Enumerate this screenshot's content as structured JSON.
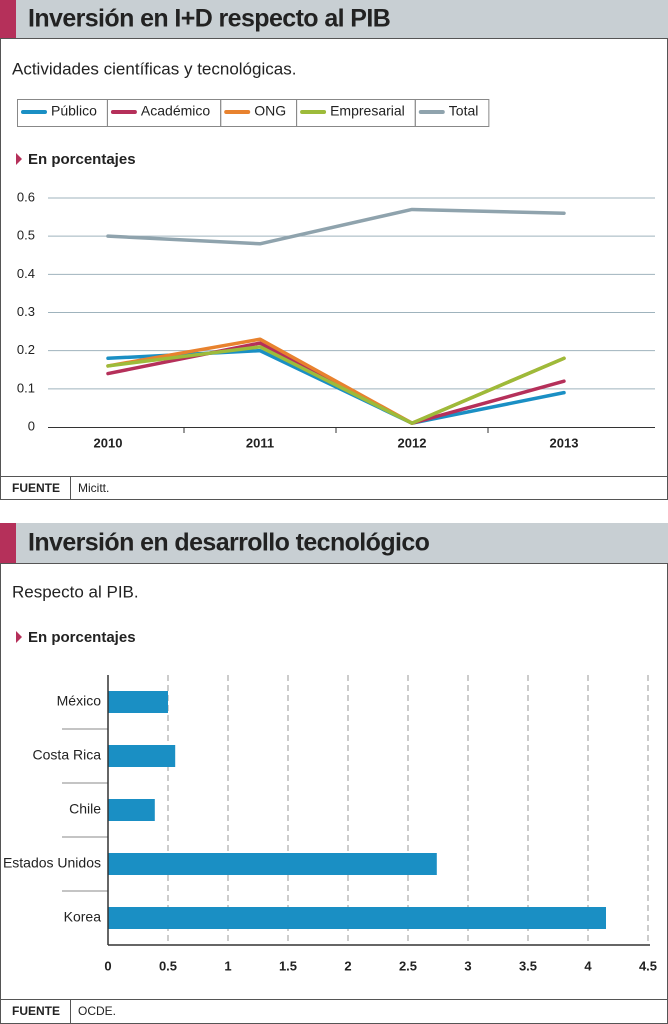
{
  "chart_data": [
    {
      "type": "line",
      "title": "Inversión en I+D respecto al PIB",
      "subtitle": "Actividades científicas y tecnológicas.",
      "unit_label": "En porcentajes",
      "categories": [
        "2010",
        "2011",
        "2012",
        "2013"
      ],
      "series": [
        {
          "name": "Público",
          "color": "#1a8fc4",
          "values": [
            0.18,
            0.2,
            0.01,
            0.09
          ]
        },
        {
          "name": "Académico",
          "color": "#b5305a",
          "values": [
            0.14,
            0.22,
            0.01,
            0.12
          ]
        },
        {
          "name": "ONG",
          "color": "#e8822e",
          "values": [
            0.16,
            0.23,
            0.01,
            0.18
          ]
        },
        {
          "name": "Empresarial",
          "color": "#9dbb3a",
          "values": [
            0.16,
            0.21,
            0.01,
            0.18
          ]
        },
        {
          "name": "Total",
          "color": "#8fa3ad",
          "values": [
            0.5,
            0.48,
            0.57,
            0.56
          ]
        }
      ],
      "ylim": [
        0,
        0.6
      ],
      "yticks": [
        0,
        0.1,
        0.2,
        0.3,
        0.4,
        0.5,
        0.6
      ],
      "grid": true,
      "source_label": "FUENTE",
      "source": "Micitt."
    },
    {
      "type": "barh",
      "title": "Inversión en desarrollo tecnológico",
      "subtitle": "Respecto al PIB.",
      "unit_label": "En porcentajes",
      "categories": [
        "México",
        "Costa Rica",
        "Chile",
        "Estados Unidos",
        "Korea"
      ],
      "values": [
        0.5,
        0.56,
        0.39,
        2.74,
        4.15
      ],
      "color": "#1a8fc4",
      "xlim": [
        0,
        4.5
      ],
      "xticks": [
        0,
        0.5,
        1,
        1.5,
        2,
        2.5,
        3,
        3.5,
        4,
        4.5
      ],
      "grid": true,
      "source_label": "FUENTE",
      "source": "OCDE."
    }
  ]
}
